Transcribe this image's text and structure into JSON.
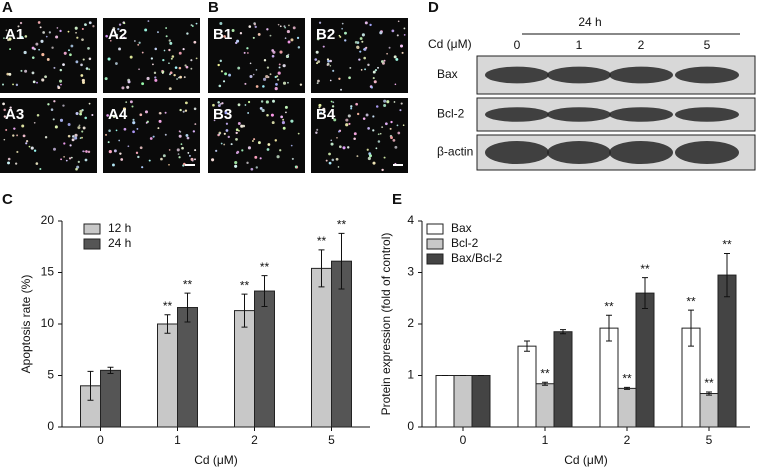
{
  "panel_labels": [
    "A",
    "B",
    "C",
    "D",
    "E"
  ],
  "images": {
    "A": [
      "A1",
      "A2",
      "A3",
      "A4"
    ],
    "B": [
      "B1",
      "B2",
      "B3",
      "B4"
    ]
  },
  "blot": {
    "header": "24 h",
    "dose_label": "Cd (μM)",
    "lanes": [
      "0",
      "1",
      "2",
      "5"
    ],
    "proteins": [
      "Bax",
      "Bcl-2",
      "β-actin"
    ]
  },
  "chart_data": [
    {
      "type": "bar",
      "x_label": "Cd (μM)",
      "y_label": "Apoptosis rate (%)",
      "categories": [
        "0",
        "1",
        "2",
        "5"
      ],
      "ylim": [
        0,
        20
      ],
      "yticks": [
        0,
        5,
        10,
        15,
        20
      ],
      "legend": "top-left",
      "series": [
        {
          "name": "12 h",
          "color": "#c8c8c8",
          "values": [
            4.0,
            10.0,
            11.3,
            15.4
          ],
          "errors": [
            1.4,
            0.9,
            1.6,
            1.8
          ],
          "annotations": [
            null,
            "**",
            "**",
            "**"
          ]
        },
        {
          "name": "24 h",
          "color": "#555555",
          "values": [
            5.5,
            11.6,
            13.2,
            16.1
          ],
          "errors": [
            0.3,
            1.4,
            1.5,
            2.7
          ],
          "annotations": [
            null,
            "**",
            "**",
            "**"
          ]
        }
      ]
    },
    {
      "type": "bar",
      "x_label": "Cd (μM)",
      "y_label": "Protein expression (fold of control)",
      "categories": [
        "0",
        "1",
        "2",
        "5"
      ],
      "ylim": [
        0,
        4
      ],
      "yticks": [
        0,
        1,
        2,
        3,
        4
      ],
      "legend": "top-left",
      "series": [
        {
          "name": "Bax",
          "color": "#ffffff",
          "values": [
            1,
            1.57,
            1.92,
            1.92
          ],
          "errors": [
            0,
            0.1,
            0.25,
            0.35
          ],
          "annotations": [
            null,
            null,
            "**",
            "**"
          ]
        },
        {
          "name": "Bcl-2",
          "color": "#c8c8c8",
          "values": [
            1,
            0.84,
            0.75,
            0.65
          ],
          "errors": [
            0,
            0.03,
            0.02,
            0.03
          ],
          "annotations": [
            null,
            "**",
            "**",
            "**"
          ]
        },
        {
          "name": "Bax/Bcl-2",
          "color": "#444444",
          "values": [
            1,
            1.85,
            2.6,
            2.95
          ],
          "errors": [
            0,
            0.04,
            0.3,
            0.42
          ],
          "annotations": [
            null,
            null,
            "**",
            "**"
          ]
        }
      ]
    }
  ]
}
